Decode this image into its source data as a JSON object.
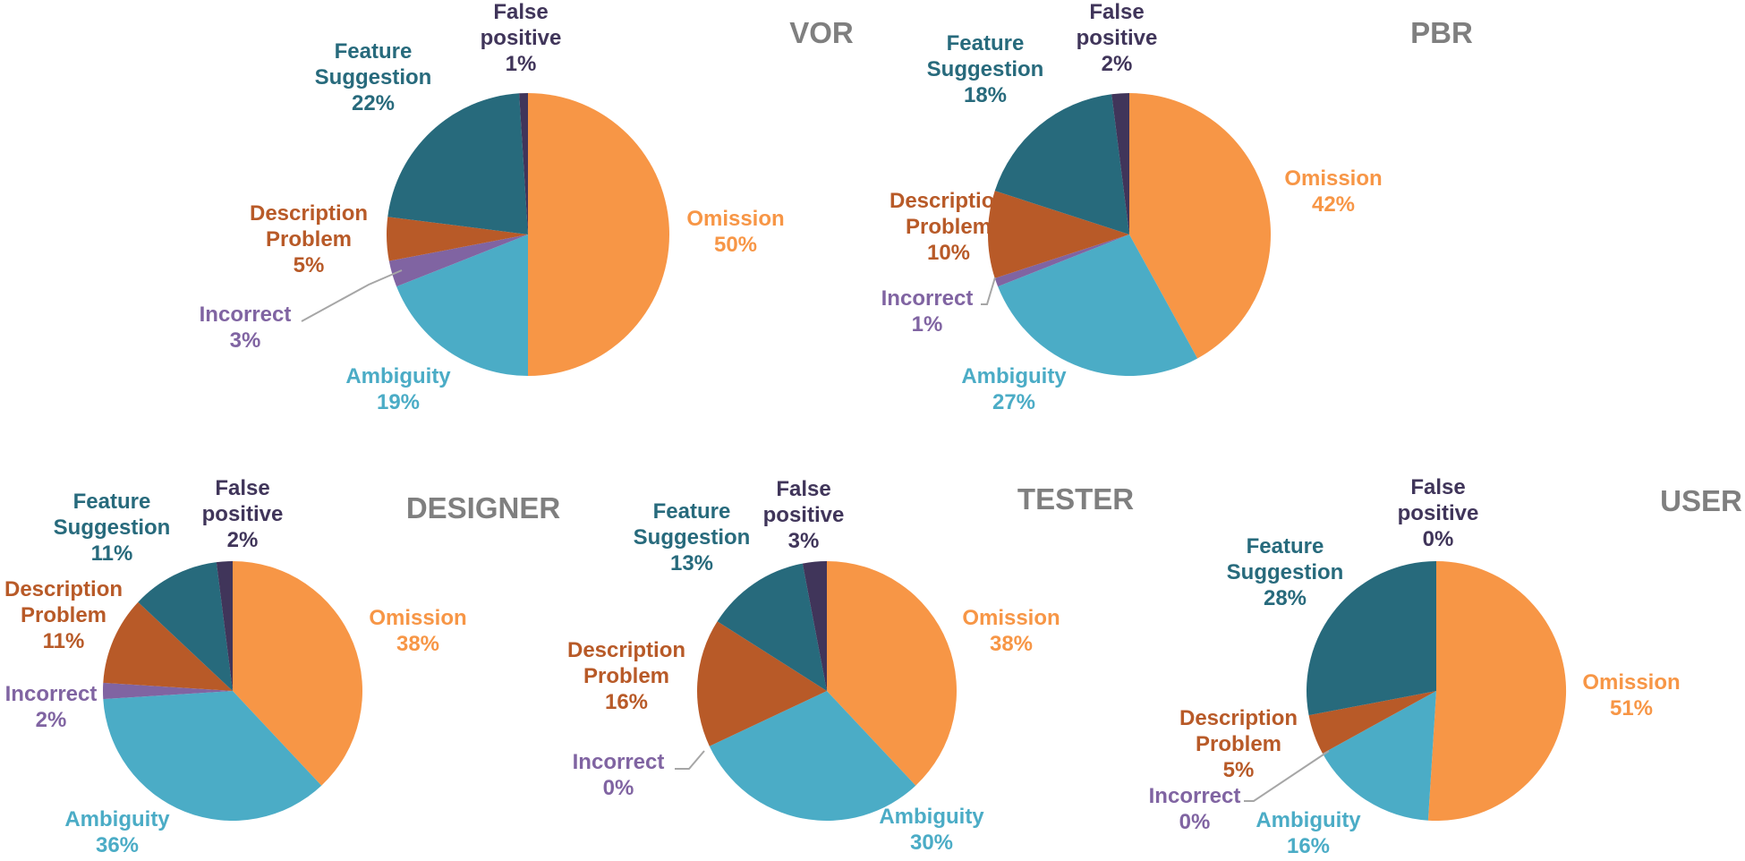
{
  "chart_data": [
    {
      "type": "pie",
      "title": "VOR",
      "series": [
        {
          "name": "Omission",
          "value": 50,
          "label": "50%"
        },
        {
          "name": "Ambiguity",
          "value": 19,
          "label": "19%"
        },
        {
          "name": "Incorrect",
          "value": 3,
          "label": "3%"
        },
        {
          "name": "Description Problem",
          "value": 5,
          "label": "5%"
        },
        {
          "name": "Feature Suggestion",
          "value": 22,
          "label": "22%"
        },
        {
          "name": "False positive",
          "value": 1,
          "label": "1%"
        }
      ]
    },
    {
      "type": "pie",
      "title": "PBR",
      "series": [
        {
          "name": "Omission",
          "value": 42,
          "label": "42%"
        },
        {
          "name": "Ambiguity",
          "value": 27,
          "label": "27%"
        },
        {
          "name": "Incorrect",
          "value": 1,
          "label": "1%"
        },
        {
          "name": "Description Problem",
          "value": 10,
          "label": "10%"
        },
        {
          "name": "Feature Suggestion",
          "value": 18,
          "label": "18%"
        },
        {
          "name": "False positive",
          "value": 2,
          "label": "2%"
        }
      ]
    },
    {
      "type": "pie",
      "title": "DESIGNER",
      "series": [
        {
          "name": "Omission",
          "value": 38,
          "label": "38%"
        },
        {
          "name": "Ambiguity",
          "value": 36,
          "label": "36%"
        },
        {
          "name": "Incorrect",
          "value": 2,
          "label": "2%"
        },
        {
          "name": "Description Problem",
          "value": 11,
          "label": "11%"
        },
        {
          "name": "Feature Suggestion",
          "value": 11,
          "label": "11%"
        },
        {
          "name": "False positive",
          "value": 2,
          "label": "2%"
        }
      ]
    },
    {
      "type": "pie",
      "title": "TESTER",
      "series": [
        {
          "name": "Omission",
          "value": 38,
          "label": "38%"
        },
        {
          "name": "Ambiguity",
          "value": 30,
          "label": "30%"
        },
        {
          "name": "Incorrect",
          "value": 0,
          "label": "0%"
        },
        {
          "name": "Description Problem",
          "value": 16,
          "label": "16%"
        },
        {
          "name": "Feature Suggestion",
          "value": 13,
          "label": "13%"
        },
        {
          "name": "False positive",
          "value": 3,
          "label": "3%"
        }
      ]
    },
    {
      "type": "pie",
      "title": "USER",
      "series": [
        {
          "name": "Omission",
          "value": 51,
          "label": "51%"
        },
        {
          "name": "Ambiguity",
          "value": 16,
          "label": "16%"
        },
        {
          "name": "Incorrect",
          "value": 0,
          "label": "0%"
        },
        {
          "name": "Description Problem",
          "value": 5,
          "label": "5%"
        },
        {
          "name": "Feature Suggestion",
          "value": 28,
          "label": "28%"
        },
        {
          "name": "False positive",
          "value": 0,
          "label": "0%"
        }
      ]
    }
  ],
  "colors": {
    "Omission": "#f79646",
    "Ambiguity": "#4bacc6",
    "Incorrect": "#8064a2",
    "Description Problem": "#b85a28",
    "Feature Suggestion": "#276a7c",
    "False positive": "#40355a"
  },
  "label_colors": {
    "Omission": "#f79646",
    "Ambiguity": "#4bacc6",
    "Incorrect": "#8064a2",
    "Description Problem": "#b85a28",
    "Feature Suggestion": "#276a7c",
    "False positive": "#40355a"
  },
  "leader_color": "#a6a6a6"
}
